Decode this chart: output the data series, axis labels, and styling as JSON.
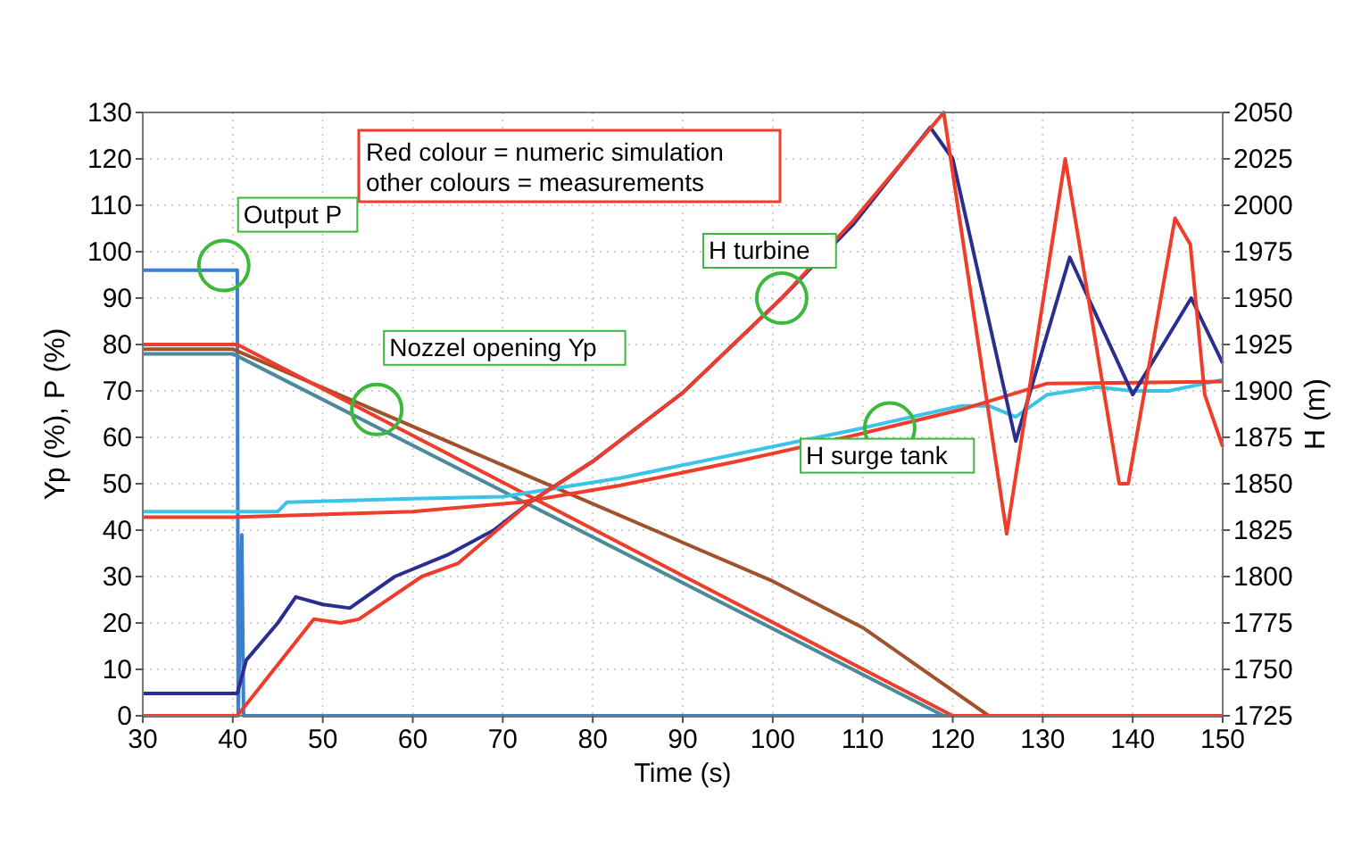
{
  "chart_data": {
    "type": "line",
    "xlabel": "Time (s)",
    "ylabel": "Yp (%), P (%)",
    "y2label": "H (m)",
    "xlim": [
      30,
      150
    ],
    "xticks": [
      30,
      40,
      50,
      60,
      70,
      80,
      90,
      100,
      110,
      120,
      130,
      140,
      150
    ],
    "ylim": [
      0,
      130
    ],
    "yticks": [
      0,
      10,
      20,
      30,
      40,
      50,
      60,
      70,
      80,
      90,
      100,
      110,
      120,
      130
    ],
    "y2lim": [
      1725,
      2050
    ],
    "y2ticks": [
      1725,
      1750,
      1775,
      1800,
      1825,
      1850,
      1875,
      1900,
      1925,
      1950,
      1975,
      2000,
      2025,
      2050
    ],
    "grid": true,
    "marker": "none",
    "line_style": "solid",
    "annotations": [
      "Red colour = numeric simulation\nother colours = measurements",
      {
        "text": "Output P",
        "x": 39,
        "y": 97
      },
      {
        "text": "Nozzel opening Yp",
        "x": 56,
        "y": 66
      },
      {
        "text": "H turbine",
        "x": 101,
        "y": 90
      },
      {
        "text": "H surge tank",
        "x": 113,
        "y": 62
      }
    ],
    "series": [
      {
        "color": "#3a7fd0",
        "x": [
          30,
          40.5,
          40.6,
          41,
          41.2,
          150
        ],
        "values": [
          96,
          96,
          0,
          39,
          0,
          0
        ]
      },
      {
        "color": "#4a8a9a",
        "x": [
          30,
          40,
          119,
          150
        ],
        "values": [
          78,
          78,
          0,
          0
        ]
      },
      {
        "color": "#a0522d",
        "x": [
          30,
          40,
          76,
          100,
          110,
          124,
          150
        ],
        "values": [
          79,
          79,
          49,
          29,
          19,
          0,
          0
        ]
      },
      {
        "color": "#f03c2a",
        "x": [
          30,
          40.5,
          120,
          150
        ],
        "values": [
          80,
          80,
          0,
          0
        ]
      },
      {
        "color": "#3cc4e8",
        "axis": "y2",
        "x": [
          30,
          45,
          46,
          60,
          70,
          83,
          96,
          109,
          121,
          124,
          127,
          130.5,
          136,
          140,
          144,
          149,
          150
        ],
        "values": [
          1835,
          1835,
          1840,
          1842,
          1843,
          1853,
          1866,
          1879,
          1892,
          1892,
          1886,
          1898,
          1902,
          1900,
          1900,
          1905,
          1906
        ]
      },
      {
        "color": "#f03c2a",
        "axis": "y2",
        "x": [
          30,
          40,
          60,
          72,
          83,
          96,
          109,
          121,
          130.5,
          150
        ],
        "values": [
          1832,
          1832,
          1835,
          1840,
          1849,
          1862,
          1876,
          1890,
          1904,
          1905
        ]
      },
      {
        "color": "#2a2f8f",
        "axis": "y2",
        "x": [
          30,
          40.5,
          41.5,
          45,
          47,
          50,
          53,
          58,
          64,
          69,
          73,
          80,
          90,
          101,
          109,
          117.5,
          120,
          127,
          133,
          140,
          146.5,
          150
        ],
        "values": [
          1737,
          1737,
          1755,
          1775,
          1789,
          1785,
          1783,
          1800,
          1812,
          1825,
          1840,
          1862,
          1899,
          1950,
          1990,
          2042,
          2025,
          1873,
          1972,
          1898,
          1950,
          1915
        ]
      },
      {
        "color": "#f03c2a",
        "axis": "y2",
        "x": [
          30,
          40.5,
          49,
          52,
          54,
          61,
          65,
          73,
          80,
          90,
          101,
          109,
          119,
          126,
          132.5,
          138.5,
          139.5,
          144.7,
          146.4,
          148,
          150
        ],
        "values": [
          1725,
          1725,
          1777,
          1775,
          1777,
          1800,
          1807,
          1840,
          1862,
          1899,
          1950,
          1992,
          2050,
          1823,
          2025,
          1850,
          1850,
          1993,
          1979,
          1898,
          1870
        ]
      }
    ]
  }
}
